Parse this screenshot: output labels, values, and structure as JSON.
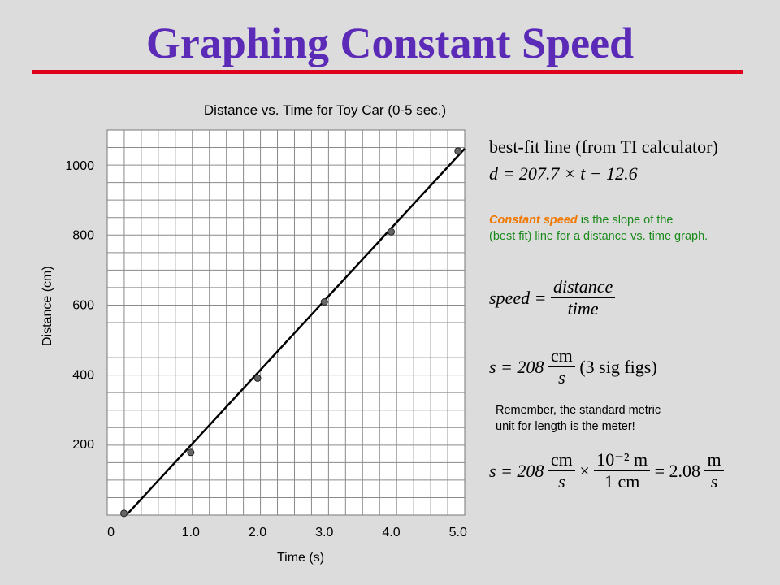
{
  "slide": {
    "title": "Graphing Constant Speed"
  },
  "chart_data": {
    "type": "scatter",
    "title": "Distance vs. Time for Toy Car (0-5 sec.)",
    "xlabel": "Time (s)",
    "ylabel": "Distance (cm)",
    "xlim": [
      -0.25,
      5.1
    ],
    "ylim": [
      -5,
      1100
    ],
    "x_ticks": [
      0,
      1.0,
      2.0,
      3.0,
      4.0,
      5.0
    ],
    "x_tick_labels": [
      "0",
      "1.0",
      "2.0",
      "3.0",
      "4.0",
      "5.0"
    ],
    "y_ticks": [
      200,
      400,
      600,
      800,
      1000
    ],
    "y_tick_labels": [
      "200",
      "400",
      "600",
      "800",
      "1000"
    ],
    "grid": true,
    "points": [
      {
        "x": 0,
        "y": 0
      },
      {
        "x": 1.0,
        "y": 175
      },
      {
        "x": 2.0,
        "y": 388
      },
      {
        "x": 3.0,
        "y": 607
      },
      {
        "x": 4.0,
        "y": 808
      },
      {
        "x": 5.0,
        "y": 1040
      }
    ],
    "fit_line": {
      "slope": 207.7,
      "intercept": -12.6,
      "x_range": [
        0.06,
        5.1
      ]
    }
  },
  "notes": {
    "best_fit_title": "best-fit line (from TI calculator)",
    "best_fit_equation": "d = 207.7 × t − 12.6",
    "constant_speed_highlight": "Constant speed",
    "constant_speed_line1": " is the slope of the",
    "constant_speed_line2": "(best fit) line for a distance vs. time graph.",
    "speed_lhs": "speed =",
    "speed_num": "distance",
    "speed_den": "time",
    "s_lhs": "s = 208",
    "unit_num": "cm",
    "unit_den": "s",
    "sig_figs": "(3 sig figs)",
    "remember_line1": "Remember, the standard metric",
    "remember_line2": "unit for length is the meter!",
    "conv_lhs": "s = 208",
    "conv_num1": "cm",
    "conv_den1": "s",
    "times": "×",
    "conv_num2": "10⁻² m",
    "conv_den2": "1 cm",
    "conv_eq": "= 2.08",
    "conv_num3": "m",
    "conv_den3": "s"
  }
}
